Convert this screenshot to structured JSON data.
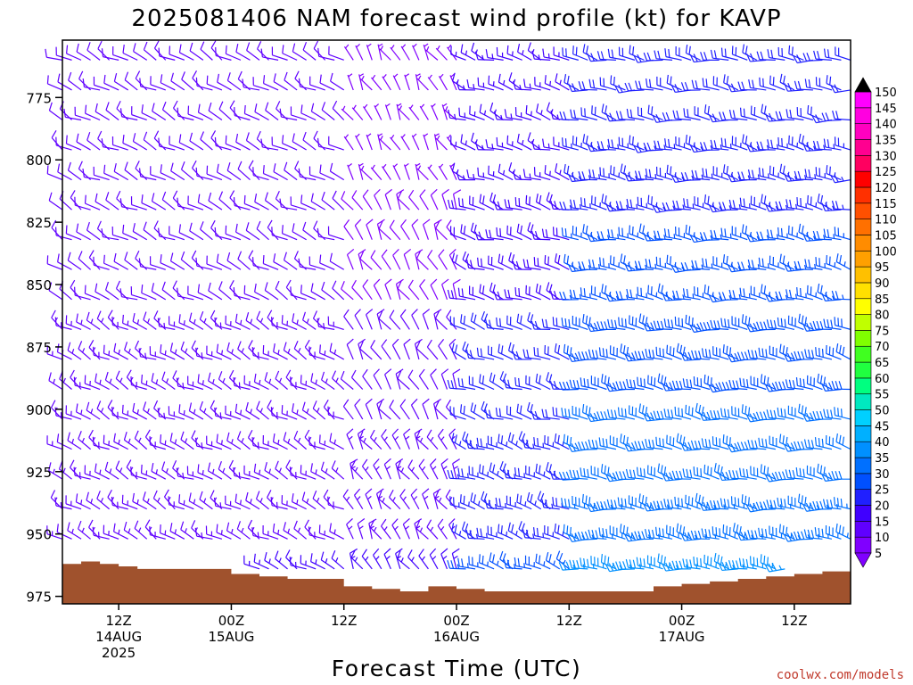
{
  "title": "2025081406 NAM forecast wind profile (kt) for KAVP",
  "credit": "coolwx.com/models",
  "chart_data": {
    "type": "wind-barb-profile",
    "title": "2025081406 NAM forecast wind profile (kt) for KAVP",
    "xlabel": "Forecast Time (UTC)",
    "ylabel": "",
    "y_axis": "pressure (hPa), decreasing upward",
    "ylim": [
      978,
      752
    ],
    "y_ticks": [
      775,
      800,
      825,
      850,
      875,
      900,
      925,
      950,
      975
    ],
    "x_range_hours_from_init": [
      0,
      84
    ],
    "x_ticks": [
      {
        "hour": 6,
        "lines": [
          "12Z",
          "14AUG",
          "2025"
        ]
      },
      {
        "hour": 18,
        "lines": [
          "00Z",
          "15AUG"
        ]
      },
      {
        "hour": 30,
        "lines": [
          "12Z"
        ]
      },
      {
        "hour": 42,
        "lines": [
          "00Z",
          "16AUG"
        ]
      },
      {
        "hour": 54,
        "lines": [
          "12Z"
        ]
      },
      {
        "hour": 66,
        "lines": [
          "00Z",
          "17AUG"
        ]
      },
      {
        "hour": 78,
        "lines": [
          "12Z"
        ]
      }
    ],
    "colorbar": {
      "unit": "kt",
      "levels": [
        5,
        10,
        15,
        20,
        25,
        30,
        35,
        40,
        45,
        50,
        55,
        60,
        65,
        70,
        75,
        80,
        85,
        90,
        95,
        100,
        105,
        110,
        115,
        120,
        125,
        130,
        135,
        140,
        145,
        150
      ],
      "colors": [
        "#8000ff",
        "#6000ff",
        "#4000ff",
        "#2020ff",
        "#0050ff",
        "#0070ff",
        "#0090ff",
        "#00b0ff",
        "#00d0ff",
        "#00e8c0",
        "#00ff80",
        "#20ff40",
        "#40ff20",
        "#80ff00",
        "#c0ff00",
        "#ffff00",
        "#ffe000",
        "#ffc000",
        "#ffa000",
        "#ff8c00",
        "#ff7000",
        "#ff5000",
        "#ff3000",
        "#ff0000",
        "#ff0060",
        "#ff0090",
        "#ff00c0",
        "#ff00e0",
        "#ff00ff",
        "#ff40ff"
      ]
    },
    "surface_pressure": {
      "hours": [
        0,
        2,
        4,
        6,
        8,
        12,
        18,
        21,
        24,
        30,
        33,
        36,
        39,
        42,
        45,
        48,
        51,
        54,
        57,
        60,
        63,
        66,
        69,
        72,
        75,
        78,
        81,
        84
      ],
      "values": [
        962,
        961,
        962,
        963,
        964,
        964,
        966,
        967,
        968,
        971,
        972,
        973,
        971,
        972,
        973,
        973,
        973,
        973,
        973,
        973,
        971,
        970,
        969,
        968,
        967,
        966,
        965,
        964
      ],
      "color": "#a0522d"
    },
    "wind_profile": {
      "description": "Wind speed (kt) and direction (deg) at forecast hour vs pressure level; speed 5-35 kt, westerly/northwesterly aloft, strongest at low levels days 2-3.",
      "levels_hpa": [
        760,
        772,
        784,
        796,
        808,
        820,
        832,
        844,
        856,
        868,
        880,
        892,
        904,
        916,
        928,
        940,
        952,
        964
      ],
      "hours_step": 1,
      "segments": [
        {
          "hours": [
            0,
            30
          ],
          "dir_deg": 300,
          "speed_kt": [
            10,
            15
          ]
        },
        {
          "hours": [
            30,
            42
          ],
          "dir_deg": 330,
          "speed_kt": [
            5,
            15
          ]
        },
        {
          "hours": [
            42,
            54
          ],
          "dir_deg": 290,
          "speed_kt": [
            15,
            25
          ]
        },
        {
          "hours": [
            54,
            84
          ],
          "dir_deg": 280,
          "speed_kt": [
            20,
            35
          ]
        }
      ]
    }
  }
}
